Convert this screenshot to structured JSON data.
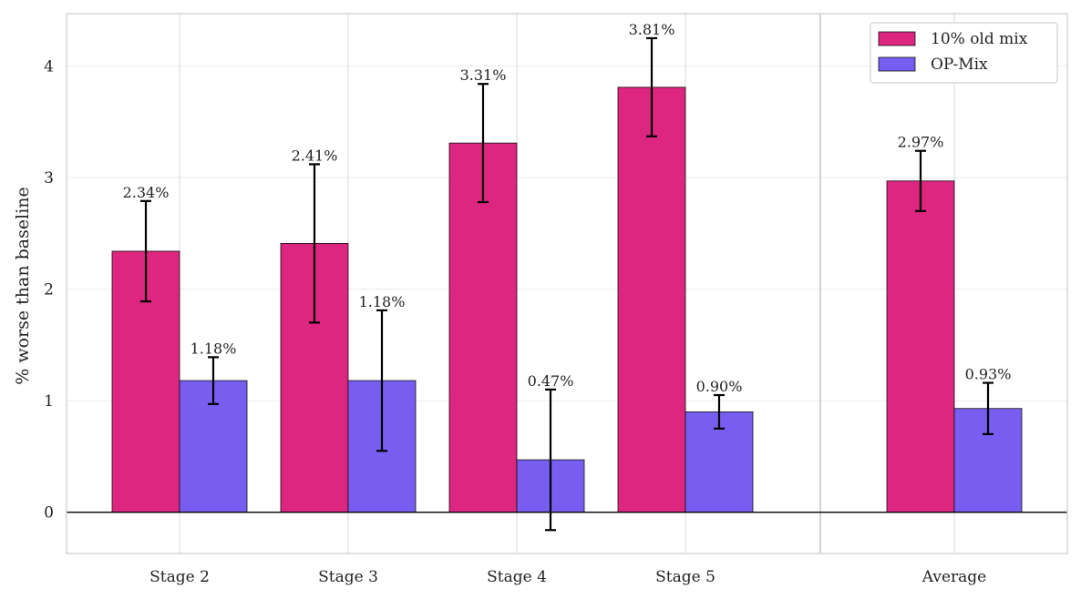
{
  "chart_data": {
    "type": "bar",
    "title": "",
    "xlabel": "",
    "ylabel": "% worse than baseline",
    "categories": [
      "Stage 2",
      "Stage 3",
      "Stage 4",
      "Stage 5",
      "Average"
    ],
    "ylim": [
      -0.37,
      4.47
    ],
    "yticks": [
      0,
      1,
      2,
      3,
      4
    ],
    "grid": true,
    "legend": "top-right",
    "separator_before": "Average",
    "series": [
      {
        "name": "10% old mix",
        "color": "#dc267f",
        "values": [
          2.34,
          2.41,
          3.31,
          3.81,
          2.97
        ],
        "errors": [
          0.45,
          0.71,
          0.53,
          0.44,
          0.27
        ],
        "labels": [
          "2.34%",
          "2.41%",
          "3.31%",
          "3.81%",
          "2.97%"
        ]
      },
      {
        "name": "OP-Mix",
        "color": "#785ef0",
        "values": [
          1.18,
          1.18,
          0.47,
          0.9,
          0.93
        ],
        "errors": [
          0.21,
          0.63,
          0.63,
          0.15,
          0.23
        ],
        "labels": [
          "1.18%",
          "1.18%",
          "0.47%",
          "0.90%",
          "0.93%"
        ]
      }
    ]
  }
}
